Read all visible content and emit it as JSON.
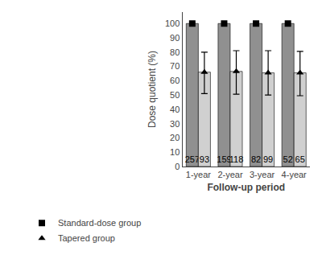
{
  "chart_data": {
    "type": "bar",
    "categories": [
      "1-year",
      "2-year",
      "3-year",
      "4-year"
    ],
    "series": [
      {
        "name": "Standard-dose group",
        "color": "#909090",
        "marker": "square",
        "values": [
          100,
          100,
          100,
          100
        ],
        "n_labels": [
          "257",
          "159",
          "82",
          "52"
        ]
      },
      {
        "name": "Tapered group",
        "color": "#d0d0d0",
        "marker": "triangle-up",
        "values": [
          66,
          66.5,
          65.5,
          65.5
        ],
        "error_upper": [
          14,
          14.5,
          15.5,
          15
        ],
        "error_lower": [
          15,
          16,
          15.5,
          16
        ],
        "n_labels": [
          "93",
          "118",
          "99",
          "65"
        ]
      }
    ],
    "xlabel": "Follow-up period",
    "ylabel": "Dose quotient (%)",
    "ylim": [
      0,
      108
    ],
    "yticks": [
      0,
      10,
      20,
      30,
      40,
      50,
      60,
      70,
      80,
      90,
      100
    ],
    "grid": false,
    "legend": "lower left"
  }
}
